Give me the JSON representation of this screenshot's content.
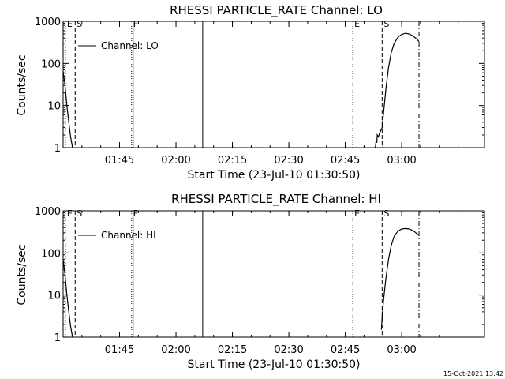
{
  "footer": {
    "timestamp": "15-Oct-2021 13:42"
  },
  "chart_data": [
    {
      "type": "line",
      "title": "RHESSI PARTICLE_RATE Channel: LO",
      "ylabel": "Counts/sec",
      "xlabel": "Start Time (23-Jul-10 01:30:50)",
      "xlim_min": [
        0,
        112
      ],
      "ylim": [
        1,
        1000
      ],
      "yscale": "log",
      "ytick_values": [
        1,
        10,
        100,
        1000
      ],
      "ytick_labels": [
        "1",
        "10",
        "100",
        "1000"
      ],
      "xtick_values": [
        15,
        30,
        45,
        60,
        75,
        90
      ],
      "xtick_labels": [
        "01:45",
        "02:00",
        "02:15",
        "02:30",
        "02:45",
        "03:00"
      ],
      "legend": {
        "label": "Channel: LO",
        "placement": "top-left"
      },
      "markers": [
        {
          "label": "E",
          "x": 0.6,
          "style": "dotted"
        },
        {
          "label": "S",
          "x": 3.2,
          "style": "dashed"
        },
        {
          "label": "F",
          "x": 18.2,
          "style": "dotted"
        },
        {
          "label": "",
          "x": 18.6,
          "style": "solid"
        },
        {
          "label": "",
          "x": 37.1,
          "style": "solid"
        },
        {
          "label": "E",
          "x": 77.0,
          "style": "dotted"
        },
        {
          "label": "S",
          "x": 84.8,
          "style": "dashed"
        },
        {
          "label": "",
          "x": 94.6,
          "style": "dashdot"
        }
      ],
      "series": [
        {
          "name": "Channel: LO",
          "x": [
            0,
            0.5,
            1,
            1.5,
            2,
            2.5
          ],
          "y": [
            65,
            30,
            10,
            4,
            1.8,
            1
          ]
        },
        {
          "name": "Channel: LO",
          "x": [
            82.6,
            83.0,
            83.2,
            83.4,
            83.5,
            83.8,
            84.2,
            84.8,
            85.2,
            85.8,
            86.5,
            87.2,
            88.0,
            89.0,
            90.0,
            91.0,
            92.0,
            93.0,
            94.0,
            94.6
          ],
          "y": [
            1,
            1,
            1.5,
            1.3,
            2,
            1.8,
            2.3,
            3,
            7,
            25,
            80,
            180,
            300,
            420,
            490,
            520,
            500,
            450,
            380,
            330
          ]
        }
      ]
    },
    {
      "type": "line",
      "title": "RHESSI PARTICLE_RATE Channel: HI",
      "ylabel": "Counts/sec",
      "xlabel": "Start Time (23-Jul-10 01:30:50)",
      "xlim_min": [
        0,
        112
      ],
      "ylim": [
        1,
        1000
      ],
      "yscale": "log",
      "ytick_values": [
        1,
        10,
        100,
        1000
      ],
      "ytick_labels": [
        "1",
        "10",
        "100",
        "1000"
      ],
      "xtick_values": [
        15,
        30,
        45,
        60,
        75,
        90
      ],
      "xtick_labels": [
        "01:45",
        "02:00",
        "02:15",
        "02:30",
        "02:45",
        "03:00"
      ],
      "legend": {
        "label": "Channel: HI",
        "placement": "top-left"
      },
      "markers": [
        {
          "label": "E",
          "x": 0.6,
          "style": "dotted"
        },
        {
          "label": "S",
          "x": 3.2,
          "style": "dashed"
        },
        {
          "label": "F",
          "x": 18.2,
          "style": "dotted"
        },
        {
          "label": "",
          "x": 18.6,
          "style": "solid"
        },
        {
          "label": "",
          "x": 37.1,
          "style": "solid"
        },
        {
          "label": "E",
          "x": 77.0,
          "style": "dotted"
        },
        {
          "label": "S",
          "x": 84.8,
          "style": "dashed"
        },
        {
          "label": "",
          "x": 94.6,
          "style": "dashdot"
        }
      ],
      "series": [
        {
          "name": "Channel: HI",
          "x": [
            0,
            0.5,
            1,
            1.5,
            2,
            2.5
          ],
          "y": [
            70,
            30,
            10,
            4,
            1.8,
            1
          ]
        },
        {
          "name": "Channel: HI",
          "x": [
            84.6,
            84.8,
            85.2,
            85.8,
            86.5,
            87.2,
            88.0,
            89.0,
            90.0,
            91.0,
            92.0,
            93.0,
            94.0,
            94.6
          ],
          "y": [
            1.5,
            3,
            8,
            25,
            70,
            150,
            250,
            330,
            370,
            380,
            370,
            340,
            290,
            260
          ]
        }
      ]
    }
  ]
}
